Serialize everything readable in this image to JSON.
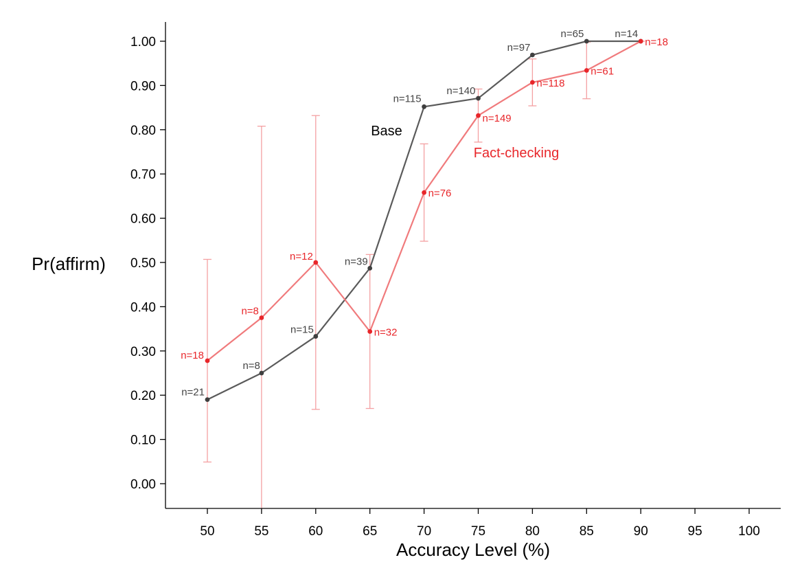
{
  "chart_data": {
    "type": "line",
    "xlabel": "Accuracy Level (%)",
    "ylabel": "Pr(affirm)",
    "xlim": [
      46,
      103
    ],
    "ylim": [
      -0.055,
      1.045
    ],
    "x_ticks": [
      50,
      55,
      60,
      65,
      70,
      75,
      80,
      85,
      90,
      95,
      100
    ],
    "x_tick_labels": [
      "50",
      "55",
      "60",
      "65",
      "70",
      "75",
      "80",
      "85",
      "90",
      "95",
      "100"
    ],
    "y_ticks": [
      0,
      0.1,
      0.2,
      0.3,
      0.4,
      0.5,
      0.6,
      0.7,
      0.8,
      0.9,
      1.0
    ],
    "y_tick_labels": [
      "0.00",
      "0.10",
      "0.20",
      "0.30",
      "0.40",
      "0.50",
      "0.60",
      "0.70",
      "0.80",
      "0.90",
      "1.00"
    ],
    "grid": false,
    "series": [
      {
        "name": "Base",
        "color": "#595959",
        "x": [
          50,
          55,
          60,
          65,
          70,
          75,
          80,
          85,
          90
        ],
        "values": [
          0.19,
          0.25,
          0.333,
          0.487,
          0.852,
          0.871,
          0.969,
          1.0,
          1.0
        ],
        "n_labels": [
          "n=21",
          "n=8",
          "n=15",
          "n=39",
          "n=115",
          "n=140",
          "n=97",
          "n=65",
          "n=14"
        ]
      },
      {
        "name": "Fact-checking",
        "color": "#e8262a",
        "x": [
          50,
          55,
          60,
          65,
          70,
          75,
          80,
          85,
          90
        ],
        "values": [
          0.278,
          0.375,
          0.5,
          0.344,
          0.658,
          0.832,
          0.907,
          0.934,
          1.0
        ],
        "n_labels": [
          "n=18",
          "n=8",
          "n=12",
          "n=32",
          "n=76",
          "n=149",
          "n=118",
          "n=61",
          "n=18"
        ],
        "error_low": [
          0.049,
          -0.06,
          0.168,
          0.17,
          0.548,
          0.772,
          0.854,
          0.87,
          1.0
        ],
        "error_high": [
          0.507,
          0.808,
          0.832,
          0.518,
          0.768,
          0.892,
          0.96,
          0.998,
          1.0
        ]
      }
    ],
    "annotations": [
      "Base",
      "Fact-checking"
    ]
  }
}
